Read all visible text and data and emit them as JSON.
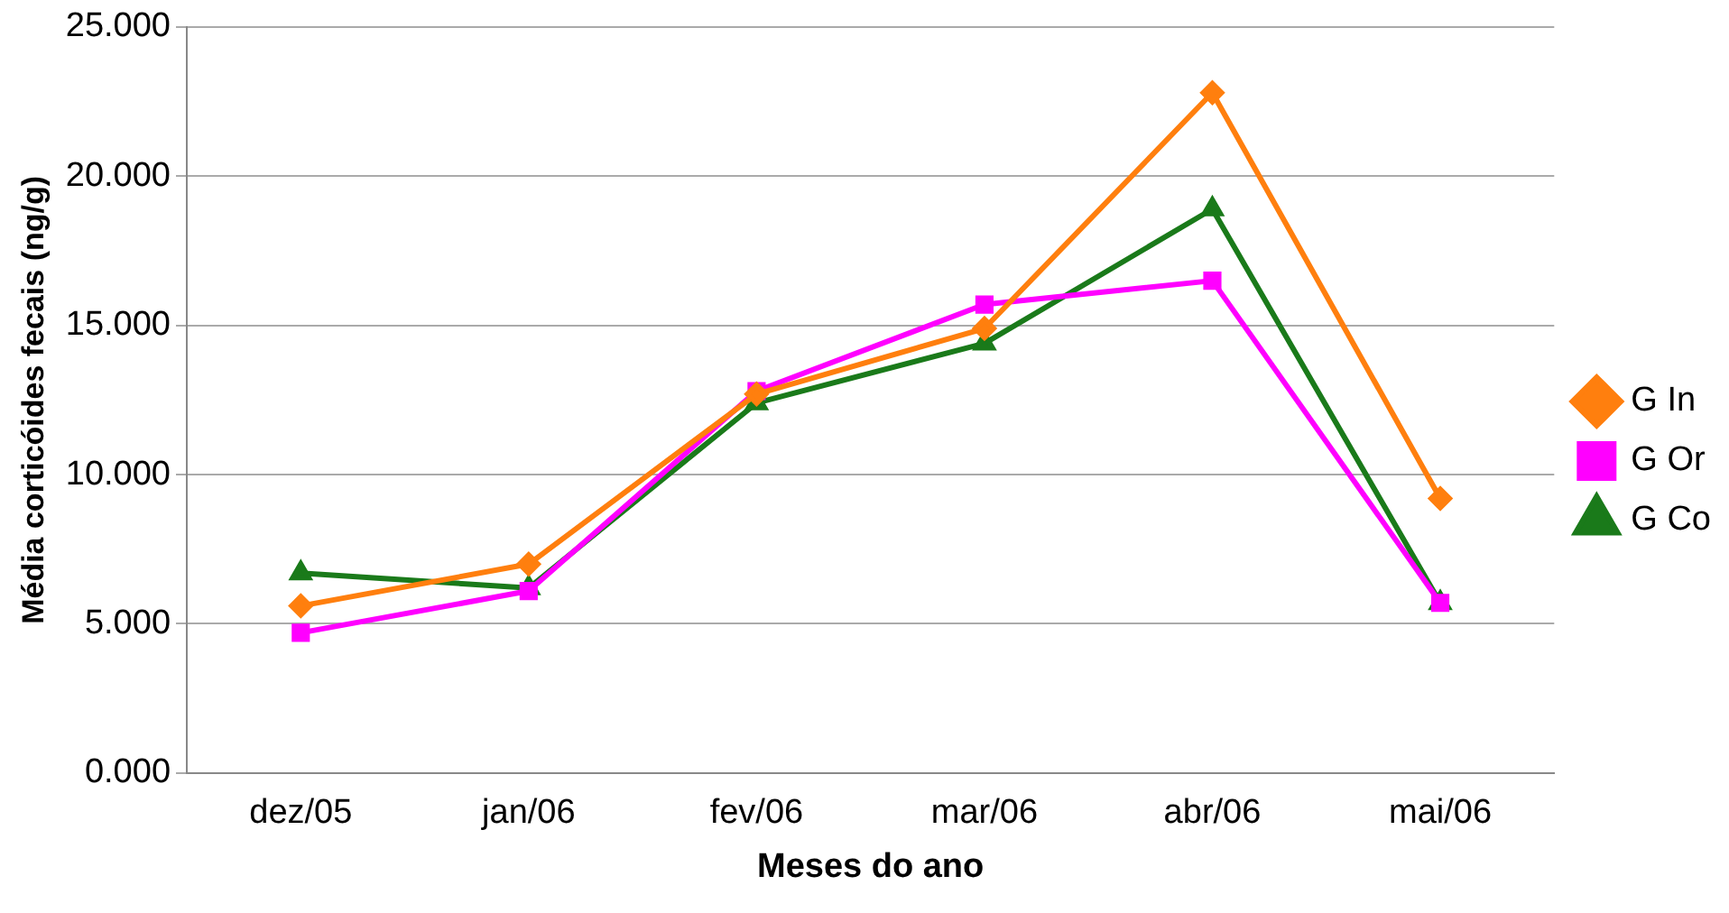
{
  "chart_data": {
    "type": "line",
    "xlabel": "Meses do ano",
    "ylabel": "Média corticóides fecais (ng/g)",
    "categories": [
      "dez/05",
      "jan/06",
      "fev/06",
      "mar/06",
      "abr/06",
      "mai/06"
    ],
    "series": [
      {
        "name": "G In",
        "color": "#ff7f0e",
        "marker": "diamond",
        "values": [
          5.6,
          7.0,
          12.7,
          14.9,
          22.8,
          9.2
        ]
      },
      {
        "name": "G Or",
        "color": "#ff00ff",
        "marker": "square",
        "values": [
          4.7,
          6.1,
          12.8,
          15.7,
          16.5,
          5.7
        ]
      },
      {
        "name": "G Co",
        "color": "#1a7a1a",
        "marker": "triangle",
        "values": [
          6.7,
          6.2,
          12.4,
          14.4,
          18.9,
          5.7
        ]
      }
    ],
    "ylim": [
      0,
      25
    ],
    "yticks": [
      {
        "value": 0,
        "label": "0.000"
      },
      {
        "value": 5,
        "label": "5.000"
      },
      {
        "value": 10,
        "label": "10.000"
      },
      {
        "value": 15,
        "label": "15.000"
      },
      {
        "value": 20,
        "label": "20.000"
      },
      {
        "value": 25,
        "label": "25.000"
      }
    ],
    "grid": "y",
    "legend": "right",
    "line_style": "solid"
  }
}
